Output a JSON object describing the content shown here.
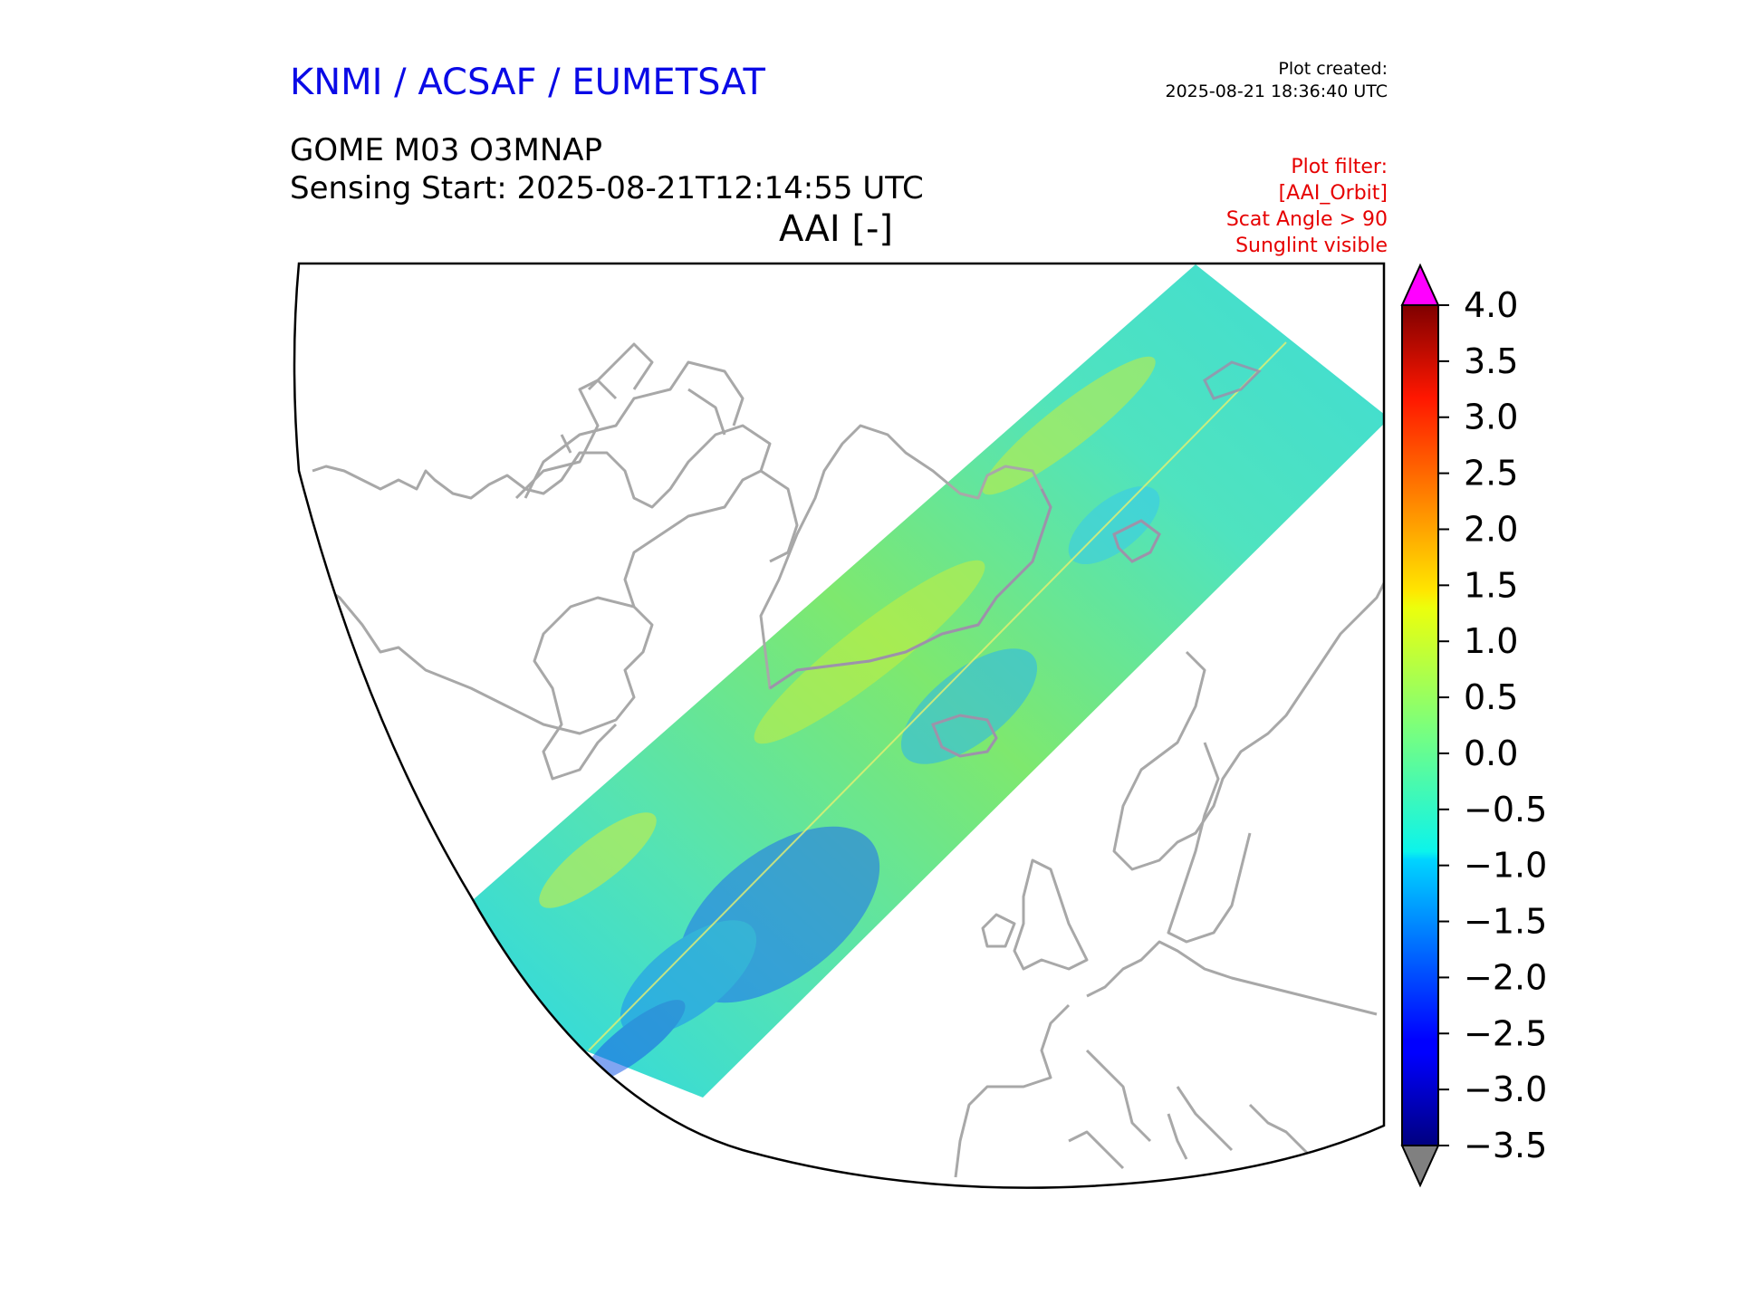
{
  "header": {
    "organisation": "KNMI / ACSAF / EUMETSAT",
    "plot_created_label": "Plot created:",
    "plot_created_time": "2025-08-21 18:36:40 UTC",
    "product": "GOME M03 O3MNAP",
    "sensing_start": "Sensing Start: 2025-08-21T12:14:55 UTC",
    "variable": "AAI [-]"
  },
  "filter": {
    "lines": [
      "Plot filter:",
      "[AAI_Orbit]",
      "Scat Angle > 90",
      "Sunglint visible"
    ]
  },
  "colors": {
    "organisation": "#0a0ae6",
    "filter": "#e60000",
    "coastline": "#a8a8a8",
    "over_max": "#ff00ff",
    "under_min": "#808080"
  },
  "colorbar": {
    "min": -3.5,
    "max": 4.0,
    "ticks": [
      "4.0",
      "3.5",
      "3.0",
      "2.5",
      "2.0",
      "1.5",
      "1.0",
      "0.5",
      "0.0",
      "−0.5",
      "−1.0",
      "−1.5",
      "−2.0",
      "−2.5",
      "−3.0",
      "−3.5"
    ],
    "colormap": "jet"
  }
}
